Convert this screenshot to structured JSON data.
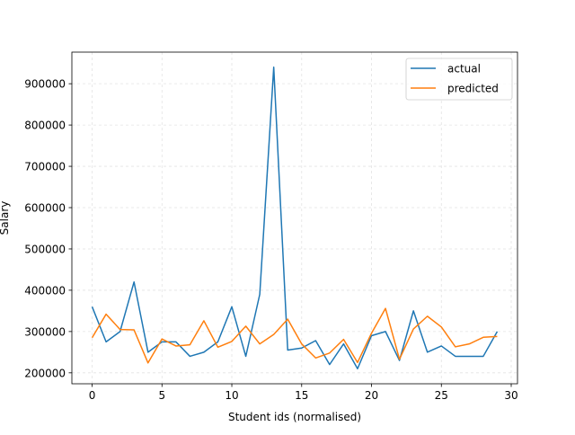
{
  "chart_data": {
    "type": "line",
    "xlabel": "Student ids (normalised)",
    "ylabel": "Salary",
    "xlim": [
      -1.45,
      30.45
    ],
    "ylim": [
      173500,
      976500
    ],
    "grid": true,
    "legend_position": "top-right",
    "x_ticks": [
      0,
      5,
      10,
      15,
      20,
      25,
      30
    ],
    "x_tick_labels": [
      "0",
      "5",
      "10",
      "15",
      "20",
      "25",
      "30"
    ],
    "y_ticks": [
      200000,
      300000,
      400000,
      500000,
      600000,
      700000,
      800000,
      900000
    ],
    "y_tick_labels": [
      "200000",
      "300000",
      "400000",
      "500000",
      "600000",
      "700000",
      "800000",
      "900000"
    ],
    "x": [
      0,
      1,
      2,
      3,
      4,
      5,
      6,
      7,
      8,
      9,
      10,
      11,
      12,
      13,
      14,
      15,
      16,
      17,
      18,
      19,
      20,
      21,
      22,
      23,
      24,
      25,
      26,
      27,
      28,
      29
    ],
    "series": [
      {
        "name": "actual",
        "color": "#1f77b4",
        "values": [
          360000,
          275000,
          300000,
          420000,
          250000,
          275000,
          275000,
          240000,
          250000,
          275000,
          360000,
          240000,
          390000,
          940000,
          255000,
          260000,
          278000,
          220000,
          270000,
          210000,
          290000,
          300000,
          230000,
          350000,
          250000,
          265000,
          240000,
          240000,
          240000,
          300000
        ]
      },
      {
        "name": "predicted",
        "color": "#ff7f0e",
        "values": [
          285000,
          342000,
          305000,
          304000,
          224000,
          282000,
          265000,
          268000,
          326000,
          262000,
          276000,
          313000,
          270000,
          293000,
          330000,
          270000,
          236000,
          248000,
          281000,
          225000,
          296000,
          356000,
          233000,
          306000,
          337000,
          311000,
          263000,
          270000,
          286000,
          288000
        ]
      }
    ]
  }
}
